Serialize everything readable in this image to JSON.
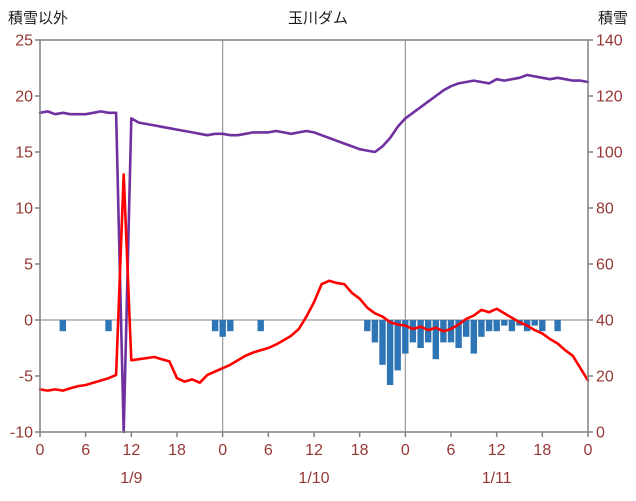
{
  "header": {
    "left_axis_title": "積雪以外",
    "chart_title": "玉川ダム",
    "right_axis_title": "積雪"
  },
  "colors": {
    "background": "#FFFFFF",
    "grid": "#9a9a9a",
    "border": "#808080",
    "tick_labels": "#953735",
    "purple_line": "#7030A0",
    "red_line": "#FF0000",
    "blue_bars": "#2E75B6"
  },
  "chart_data": {
    "type": "line+bar",
    "title": "玉川ダム",
    "x": {
      "start_hour": 0,
      "step_hours": 1,
      "total_hours": 72,
      "tick_interval_hours": 6,
      "tick_labels": [
        "0",
        "6",
        "12",
        "18",
        "0",
        "6",
        "12",
        "18",
        "0",
        "6",
        "12",
        "18",
        "0"
      ],
      "day_labels": [
        {
          "label": "1/9",
          "center_hour": 12
        },
        {
          "label": "1/10",
          "center_hour": 36
        },
        {
          "label": "1/11",
          "center_hour": 60
        }
      ],
      "day_boundary_hours": [
        24,
        48
      ]
    },
    "left_axis": {
      "title": "積雪以外",
      "min": -10,
      "max": 25,
      "tick_step": 5,
      "tick_labels": [
        "25",
        "20",
        "15",
        "10",
        "5",
        "0",
        "-5",
        "-10"
      ]
    },
    "right_axis": {
      "title": "積雪",
      "min": 0,
      "max": 140,
      "tick_step": 20,
      "tick_labels": [
        "140",
        "120",
        "100",
        "80",
        "60",
        "40",
        "20",
        "0"
      ]
    },
    "series": [
      {
        "id": "right-axis-purple",
        "type": "line",
        "axis": "right",
        "color": "#7030A0",
        "width": 2.6,
        "values": [
          114,
          114.5,
          113.5,
          114,
          113.5,
          113.5,
          113.5,
          114,
          114.5,
          114,
          114,
          0,
          112,
          110.5,
          110,
          109.5,
          109,
          108.5,
          108,
          107.5,
          107,
          106.5,
          106,
          106.5,
          106.5,
          106,
          106,
          106.5,
          107,
          107,
          107,
          107.5,
          107,
          106.5,
          107,
          107.5,
          107,
          106,
          105,
          104,
          103,
          102,
          101,
          100.5,
          100,
          102,
          105,
          109,
          112,
          114,
          116,
          118,
          120,
          122,
          123.5,
          124.5,
          125,
          125.5,
          125,
          124.5,
          126,
          125.5,
          126,
          126.5,
          127.5,
          127,
          126.5,
          126,
          126.5,
          126,
          125.5,
          125.5,
          125
        ]
      },
      {
        "id": "left-axis-red",
        "type": "line",
        "axis": "left",
        "color": "#FF0000",
        "width": 2.6,
        "values": [
          -6.2,
          -6.3,
          -6.2,
          -6.3,
          -6.1,
          -5.9,
          -5.8,
          -5.6,
          -5.4,
          -5.2,
          -4.9,
          13,
          -3.6,
          -3.5,
          -3.4,
          -3.3,
          -3.5,
          -3.7,
          -5.2,
          -5.5,
          -5.3,
          -5.6,
          -4.9,
          -4.6,
          -4.3,
          -4.0,
          -3.6,
          -3.2,
          -2.9,
          -2.7,
          -2.5,
          -2.2,
          -1.8,
          -1.4,
          -0.8,
          0.3,
          1.6,
          3.2,
          3.5,
          3.3,
          3.2,
          2.4,
          1.9,
          1.1,
          0.6,
          0.3,
          -0.2,
          -0.4,
          -0.5,
          -0.8,
          -0.6,
          -0.9,
          -0.7,
          -1.0,
          -0.8,
          -0.4,
          0.1,
          0.4,
          0.9,
          0.7,
          1.0,
          0.6,
          0.2,
          -0.2,
          -0.5,
          -0.9,
          -1.2,
          -1.7,
          -2.1,
          -2.7,
          -3.2,
          -4.3,
          -5.4
        ]
      },
      {
        "id": "left-axis-blue-bars",
        "type": "bar",
        "axis": "left",
        "color": "#2E75B6",
        "values": [
          0,
          0,
          0,
          -1,
          0,
          0,
          0,
          0,
          0,
          -1,
          0,
          0,
          0,
          0,
          0,
          0,
          0,
          0,
          0,
          0,
          0,
          0,
          0,
          -1,
          -1.5,
          -1,
          0,
          0,
          0,
          -1,
          0,
          0,
          0,
          0,
          0,
          0,
          0,
          0,
          0,
          0,
          0,
          0,
          0,
          -1,
          -2,
          -4,
          -5.8,
          -4.5,
          -3,
          -2,
          -2.5,
          -2,
          -3.5,
          -2,
          -2,
          -2.5,
          -1.5,
          -3,
          -1.5,
          -1,
          -1,
          -0.5,
          -1,
          -0.5,
          -1,
          -0.5,
          -1,
          0,
          -1,
          0,
          0,
          0,
          0
        ]
      }
    ]
  }
}
